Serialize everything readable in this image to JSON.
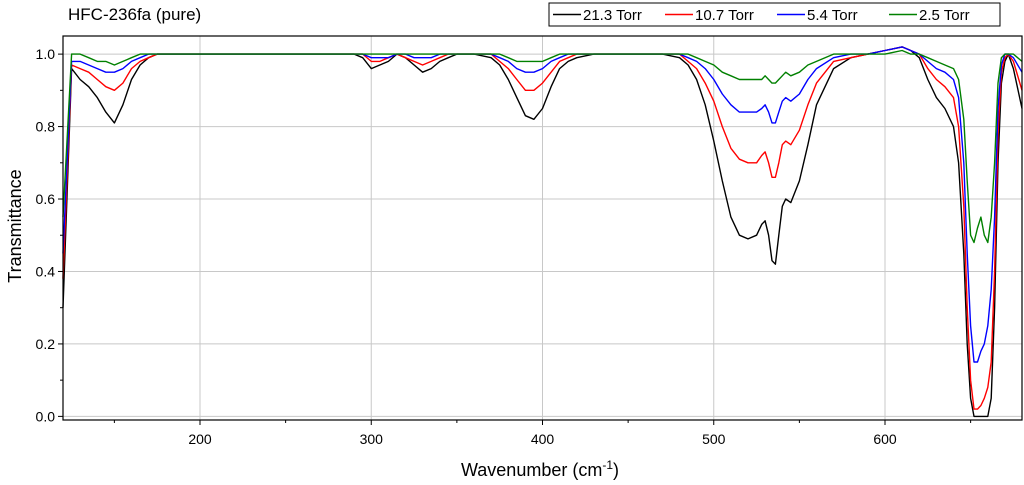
{
  "chart_data": {
    "type": "line",
    "title": "HFC-236fa (pure)",
    "xlabel": "Wavenumber (cm",
    "xlabel_sup": "-1",
    "xlabel_end": ")",
    "ylabel": "Transmittance",
    "xlim": [
      120,
      680
    ],
    "ylim": [
      -0.01,
      1.05
    ],
    "x_ticks": [
      200,
      300,
      400,
      500,
      600
    ],
    "y_ticks": [
      0.0,
      0.2,
      0.4,
      0.6,
      0.8,
      1.0
    ],
    "x_tick_labels": [
      "200",
      "300",
      "400",
      "500",
      "600"
    ],
    "y_tick_labels": [
      "0.0",
      "0.2",
      "0.4",
      "0.6",
      "0.8",
      "1.0"
    ],
    "grid": true,
    "legend_position": "top-right",
    "x": [
      120,
      125,
      130,
      135,
      140,
      145,
      150,
      155,
      160,
      165,
      170,
      175,
      180,
      190,
      200,
      210,
      220,
      230,
      240,
      250,
      260,
      270,
      280,
      290,
      295,
      300,
      305,
      310,
      315,
      320,
      325,
      330,
      335,
      340,
      345,
      350,
      360,
      370,
      375,
      380,
      385,
      390,
      395,
      400,
      405,
      410,
      415,
      420,
      430,
      440,
      450,
      460,
      470,
      480,
      485,
      490,
      495,
      500,
      505,
      510,
      515,
      520,
      525,
      528,
      530,
      532,
      534,
      536,
      538,
      540,
      542,
      545,
      550,
      555,
      560,
      570,
      580,
      590,
      600,
      610,
      615,
      620,
      625,
      630,
      635,
      640,
      643,
      646,
      648,
      650,
      652,
      654,
      656,
      658,
      660,
      662,
      664,
      666,
      668,
      670,
      672,
      675,
      680
    ],
    "series": [
      {
        "name": "21.3 Torr",
        "color": "#000000",
        "values": [
          0.3,
          0.96,
          0.93,
          0.91,
          0.88,
          0.84,
          0.81,
          0.86,
          0.93,
          0.97,
          0.99,
          1.0,
          1.0,
          1.0,
          1.0,
          1.0,
          1.0,
          1.0,
          1.0,
          1.0,
          1.0,
          1.0,
          1.0,
          1.0,
          0.99,
          0.96,
          0.97,
          0.98,
          1.0,
          0.99,
          0.97,
          0.95,
          0.96,
          0.98,
          0.99,
          1.0,
          1.0,
          0.99,
          0.97,
          0.93,
          0.88,
          0.83,
          0.82,
          0.85,
          0.91,
          0.96,
          0.98,
          0.99,
          1.0,
          1.0,
          1.0,
          1.0,
          1.0,
          0.99,
          0.97,
          0.93,
          0.86,
          0.76,
          0.65,
          0.55,
          0.5,
          0.49,
          0.5,
          0.53,
          0.54,
          0.5,
          0.43,
          0.42,
          0.5,
          0.58,
          0.6,
          0.59,
          0.65,
          0.75,
          0.86,
          0.96,
          0.99,
          1.0,
          1.01,
          1.02,
          1.01,
          0.99,
          0.93,
          0.88,
          0.85,
          0.8,
          0.7,
          0.45,
          0.2,
          0.05,
          0.0,
          0.0,
          0.0,
          0.0,
          0.0,
          0.05,
          0.3,
          0.7,
          0.92,
          0.98,
          1.0,
          0.96,
          0.85
        ]
      },
      {
        "name": "10.7 Torr",
        "color": "#ff0000",
        "values": [
          0.38,
          0.97,
          0.96,
          0.95,
          0.93,
          0.91,
          0.9,
          0.92,
          0.96,
          0.98,
          0.99,
          1.0,
          1.0,
          1.0,
          1.0,
          1.0,
          1.0,
          1.0,
          1.0,
          1.0,
          1.0,
          1.0,
          1.0,
          1.0,
          1.0,
          0.98,
          0.98,
          0.99,
          1.0,
          0.99,
          0.98,
          0.97,
          0.98,
          0.99,
          1.0,
          1.0,
          1.0,
          1.0,
          0.98,
          0.96,
          0.93,
          0.9,
          0.9,
          0.92,
          0.95,
          0.98,
          0.99,
          1.0,
          1.0,
          1.0,
          1.0,
          1.0,
          1.0,
          1.0,
          0.98,
          0.96,
          0.92,
          0.87,
          0.8,
          0.74,
          0.71,
          0.7,
          0.7,
          0.72,
          0.73,
          0.7,
          0.66,
          0.66,
          0.7,
          0.75,
          0.76,
          0.75,
          0.79,
          0.86,
          0.92,
          0.98,
          0.99,
          1.0,
          1.01,
          1.02,
          1.01,
          1.0,
          0.96,
          0.93,
          0.91,
          0.88,
          0.8,
          0.58,
          0.3,
          0.1,
          0.02,
          0.02,
          0.03,
          0.05,
          0.08,
          0.15,
          0.4,
          0.78,
          0.95,
          0.99,
          1.0,
          0.98,
          0.9
        ]
      },
      {
        "name": "5.4 Torr",
        "color": "#0000ff",
        "values": [
          0.45,
          0.98,
          0.98,
          0.97,
          0.96,
          0.95,
          0.95,
          0.96,
          0.98,
          0.99,
          1.0,
          1.0,
          1.0,
          1.0,
          1.0,
          1.0,
          1.0,
          1.0,
          1.0,
          1.0,
          1.0,
          1.0,
          1.0,
          1.0,
          1.0,
          0.99,
          0.99,
          0.99,
          1.0,
          1.0,
          0.99,
          0.99,
          0.99,
          1.0,
          1.0,
          1.0,
          1.0,
          1.0,
          0.99,
          0.98,
          0.96,
          0.95,
          0.95,
          0.96,
          0.98,
          0.99,
          1.0,
          1.0,
          1.0,
          1.0,
          1.0,
          1.0,
          1.0,
          1.0,
          0.99,
          0.98,
          0.96,
          0.93,
          0.89,
          0.86,
          0.84,
          0.84,
          0.84,
          0.85,
          0.86,
          0.84,
          0.81,
          0.81,
          0.84,
          0.87,
          0.88,
          0.87,
          0.89,
          0.93,
          0.96,
          0.99,
          1.0,
          1.0,
          1.01,
          1.02,
          1.01,
          1.0,
          0.98,
          0.96,
          0.95,
          0.93,
          0.88,
          0.7,
          0.45,
          0.25,
          0.15,
          0.15,
          0.18,
          0.2,
          0.25,
          0.35,
          0.55,
          0.85,
          0.97,
          1.0,
          1.0,
          0.99,
          0.95
        ]
      },
      {
        "name": "2.5 Torr",
        "color": "#008000",
        "values": [
          0.55,
          1.0,
          1.0,
          0.99,
          0.98,
          0.98,
          0.97,
          0.98,
          0.99,
          1.0,
          1.0,
          1.0,
          1.0,
          1.0,
          1.0,
          1.0,
          1.0,
          1.0,
          1.0,
          1.0,
          1.0,
          1.0,
          1.0,
          1.0,
          1.0,
          1.0,
          1.0,
          1.0,
          1.0,
          1.0,
          1.0,
          1.0,
          1.0,
          1.0,
          1.0,
          1.0,
          1.0,
          1.0,
          1.0,
          0.99,
          0.98,
          0.98,
          0.98,
          0.98,
          0.99,
          1.0,
          1.0,
          1.0,
          1.0,
          1.0,
          1.0,
          1.0,
          1.0,
          1.0,
          1.0,
          0.99,
          0.98,
          0.97,
          0.95,
          0.94,
          0.93,
          0.93,
          0.93,
          0.93,
          0.94,
          0.93,
          0.92,
          0.92,
          0.93,
          0.94,
          0.95,
          0.94,
          0.95,
          0.97,
          0.98,
          1.0,
          1.0,
          1.0,
          1.0,
          1.01,
          1.0,
          1.0,
          0.99,
          0.98,
          0.97,
          0.96,
          0.93,
          0.82,
          0.65,
          0.5,
          0.48,
          0.52,
          0.55,
          0.5,
          0.48,
          0.55,
          0.7,
          0.92,
          0.99,
          1.0,
          1.0,
          1.0,
          0.98
        ]
      }
    ]
  }
}
